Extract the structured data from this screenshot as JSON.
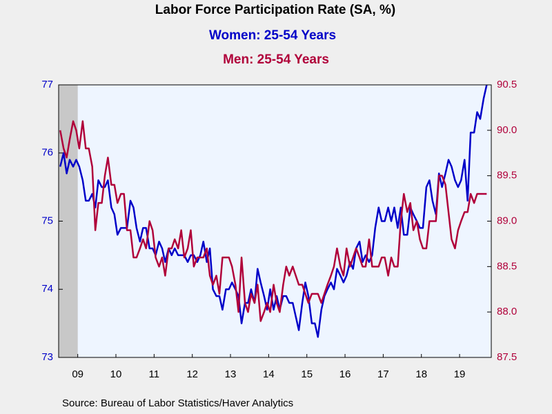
{
  "chart_data": {
    "type": "line",
    "title": "Labor Force Participation Rate (SA, %)",
    "source": "Source:  Bureau of Labor Statistics/Haver Analytics",
    "x": [
      2009.04,
      2009.13,
      2009.21,
      2009.29,
      2009.38,
      2009.46,
      2009.54,
      2009.63,
      2009.71,
      2009.79,
      2009.88,
      2009.96,
      2010.04,
      2010.13,
      2010.21,
      2010.29,
      2010.38,
      2010.46,
      2010.54,
      2010.63,
      2010.71,
      2010.79,
      2010.88,
      2010.96,
      2011.04,
      2011.13,
      2011.21,
      2011.29,
      2011.38,
      2011.46,
      2011.54,
      2011.63,
      2011.71,
      2011.79,
      2011.88,
      2011.96,
      2012.04,
      2012.13,
      2012.21,
      2012.29,
      2012.38,
      2012.46,
      2012.54,
      2012.63,
      2012.71,
      2012.79,
      2012.88,
      2012.96,
      2013.04,
      2013.13,
      2013.21,
      2013.29,
      2013.38,
      2013.46,
      2013.54,
      2013.63,
      2013.71,
      2013.79,
      2013.88,
      2013.96,
      2014.04,
      2014.13,
      2014.21,
      2014.29,
      2014.38,
      2014.46,
      2014.54,
      2014.63,
      2014.71,
      2014.79,
      2014.88,
      2014.96,
      2015.04,
      2015.13,
      2015.21,
      2015.29,
      2015.38,
      2015.46,
      2015.54,
      2015.63,
      2015.71,
      2015.79,
      2015.88,
      2015.96,
      2016.04,
      2016.13,
      2016.21,
      2016.29,
      2016.38,
      2016.46,
      2016.54,
      2016.63,
      2016.71,
      2016.79,
      2016.88,
      2016.96,
      2017.04,
      2017.13,
      2017.21,
      2017.29,
      2017.38,
      2017.46,
      2017.54,
      2017.63,
      2017.71,
      2017.79,
      2017.88,
      2017.96,
      2018.04,
      2018.13,
      2018.21,
      2018.29,
      2018.38,
      2018.46,
      2018.54,
      2018.63,
      2018.71,
      2018.79,
      2018.88,
      2018.96,
      2019.04,
      2019.13,
      2019.21,
      2019.29,
      2019.38,
      2019.46,
      2019.54,
      2019.63,
      2019.71,
      2019.79,
      2019.88,
      2019.96,
      2020.04,
      2020.13,
      2020.21
    ],
    "series": [
      {
        "name": "Women: 25-54 Years",
        "color": "#0000c8",
        "axis": "y",
        "values": [
          75.8,
          76.0,
          75.7,
          75.9,
          75.8,
          75.9,
          75.8,
          75.6,
          75.3,
          75.3,
          75.4,
          75.2,
          75.6,
          75.5,
          75.5,
          75.6,
          75.2,
          75.1,
          74.8,
          74.9,
          74.9,
          74.9,
          75.3,
          75.2,
          74.9,
          74.7,
          74.9,
          74.9,
          74.6,
          74.6,
          74.5,
          74.7,
          74.6,
          74.4,
          74.6,
          74.5,
          74.6,
          74.5,
          74.5,
          74.5,
          74.4,
          74.5,
          74.5,
          74.4,
          74.5,
          74.7,
          74.4,
          74.6,
          74.0,
          73.9,
          73.9,
          73.7,
          74.0,
          74.0,
          74.1,
          74.0,
          73.9,
          73.5,
          73.8,
          73.8,
          74.0,
          73.8,
          74.3,
          74.1,
          73.9,
          73.7,
          74.0,
          73.7,
          73.9,
          73.7,
          73.9,
          73.9,
          73.8,
          73.8,
          73.6,
          73.4,
          73.8,
          74.1,
          73.9,
          73.5,
          73.5,
          73.3,
          73.7,
          73.9,
          74.0,
          74.1,
          74.0,
          74.3,
          74.2,
          74.1,
          74.2,
          74.4,
          74.3,
          74.6,
          74.7,
          74.4,
          74.5,
          74.4,
          74.5,
          74.9,
          75.2,
          75.0,
          75.0,
          75.2,
          75.0,
          75.2,
          74.9,
          75.2,
          74.8,
          74.8,
          75.2,
          75.1,
          75.0,
          74.9,
          74.9,
          75.5,
          75.6,
          75.3,
          75.1,
          75.7,
          75.5,
          75.7,
          75.9,
          75.8,
          75.6,
          75.5,
          75.6,
          75.9,
          75.3,
          76.3,
          76.3,
          76.6,
          76.5,
          76.8,
          77.0
        ]
      },
      {
        "name": "Men: 25-54 Years",
        "color": "#b0003a",
        "axis": "y2",
        "values": [
          90.0,
          89.8,
          89.7,
          89.9,
          90.1,
          90.0,
          89.8,
          90.1,
          89.8,
          89.8,
          89.6,
          88.9,
          89.2,
          89.2,
          89.5,
          89.7,
          89.4,
          89.4,
          89.2,
          89.3,
          89.3,
          88.9,
          88.9,
          88.6,
          88.6,
          88.7,
          88.8,
          88.7,
          89.0,
          88.9,
          88.6,
          88.5,
          88.6,
          88.4,
          88.7,
          88.7,
          88.8,
          88.7,
          88.9,
          88.6,
          88.7,
          88.9,
          88.5,
          88.6,
          88.6,
          88.6,
          88.7,
          88.4,
          88.3,
          88.4,
          88.2,
          88.6,
          88.6,
          88.6,
          88.5,
          88.3,
          88.0,
          88.6,
          88.1,
          88.0,
          88.2,
          88.1,
          88.3,
          87.9,
          88.0,
          88.1,
          88.0,
          88.3,
          88.1,
          88.0,
          88.3,
          88.5,
          88.4,
          88.5,
          88.4,
          88.3,
          88.3,
          88.2,
          88.1,
          88.2,
          88.2,
          88.2,
          88.1,
          88.2,
          88.3,
          88.4,
          88.5,
          88.7,
          88.5,
          88.4,
          88.7,
          88.5,
          88.6,
          88.7,
          88.6,
          88.5,
          88.5,
          88.8,
          88.5,
          88.5,
          88.5,
          88.6,
          88.6,
          88.4,
          88.6,
          88.5,
          88.5,
          89.0,
          89.3,
          89.1,
          89.2,
          88.9,
          89.0,
          88.8,
          88.7,
          88.7,
          89.0,
          89.0,
          89.0,
          89.5,
          89.5,
          89.4,
          89.1,
          88.8,
          88.7,
          88.9,
          89.0,
          89.1,
          89.1,
          89.3,
          89.2,
          89.3,
          89.3,
          89.3,
          89.3
        ]
      }
    ],
    "recession": [
      2009,
      2009.5
    ],
    "xlim": [
      2009,
      2020.33
    ],
    "xticks": [
      {
        "value": 2009.5,
        "label": "09"
      },
      {
        "value": 2010.5,
        "label": "10"
      },
      {
        "value": 2011.5,
        "label": "11"
      },
      {
        "value": 2012.5,
        "label": "12"
      },
      {
        "value": 2013.5,
        "label": "13"
      },
      {
        "value": 2014.5,
        "label": "14"
      },
      {
        "value": 2015.5,
        "label": "15"
      },
      {
        "value": 2016.5,
        "label": "16"
      },
      {
        "value": 2017.5,
        "label": "17"
      },
      {
        "value": 2018.5,
        "label": "18"
      },
      {
        "value": 2019.5,
        "label": "19"
      }
    ],
    "ylim": [
      73,
      77
    ],
    "yticks": [
      73,
      74,
      75,
      76,
      77
    ],
    "y2lim": [
      87.5,
      90.5
    ],
    "y2ticks": [
      87.5,
      {
        "value": 88,
        "label": "88.0"
      },
      88.5,
      {
        "value": 89,
        "label": "89.0"
      },
      89.5,
      {
        "value": 90,
        "label": "90.0"
      },
      90.5
    ]
  }
}
